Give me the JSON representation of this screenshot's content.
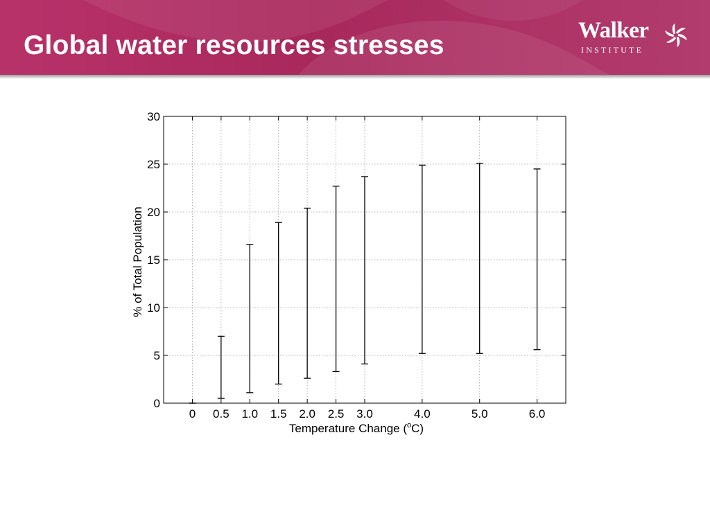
{
  "slide": {
    "title": "Global water resources stresses"
  },
  "logo": {
    "name": "Walker",
    "subtitle": "INSTITUTE",
    "icon": "pinwheel-icon"
  },
  "colors": {
    "header": "#a8285c",
    "title_text": "#ffffff"
  },
  "chart_data": {
    "type": "error-bar",
    "title": "",
    "xlabel": "Temperature Change (°C)",
    "xlabel_main": "Temperature Change (",
    "xlabel_sup": "o",
    "xlabel_end": "C)",
    "ylabel": "% of Total Population",
    "xlim": [
      -0.5,
      6.5
    ],
    "ylim": [
      0,
      30
    ],
    "yticks": [
      0,
      5,
      10,
      15,
      20,
      25,
      30
    ],
    "xticks": [
      0,
      0.5,
      1.0,
      1.5,
      2.0,
      2.5,
      3.0,
      4.0,
      5.0,
      6.0
    ],
    "xtick_labels": [
      "0",
      "0.5",
      "1.0",
      "1.5",
      "2.0",
      "2.5",
      "3.0",
      "4.0",
      "5.0",
      "6.0"
    ],
    "grid": true,
    "series": [
      {
        "x": [
          0,
          0.5,
          1.0,
          1.5,
          2.0,
          2.5,
          3.0,
          4.0,
          5.0,
          6.0
        ],
        "low": [
          0,
          0.5,
          1.1,
          2.0,
          2.6,
          3.3,
          4.1,
          5.2,
          5.2,
          5.6
        ],
        "high": [
          0,
          7.0,
          16.6,
          18.9,
          20.4,
          22.7,
          23.7,
          24.9,
          25.1,
          24.5
        ]
      }
    ]
  }
}
